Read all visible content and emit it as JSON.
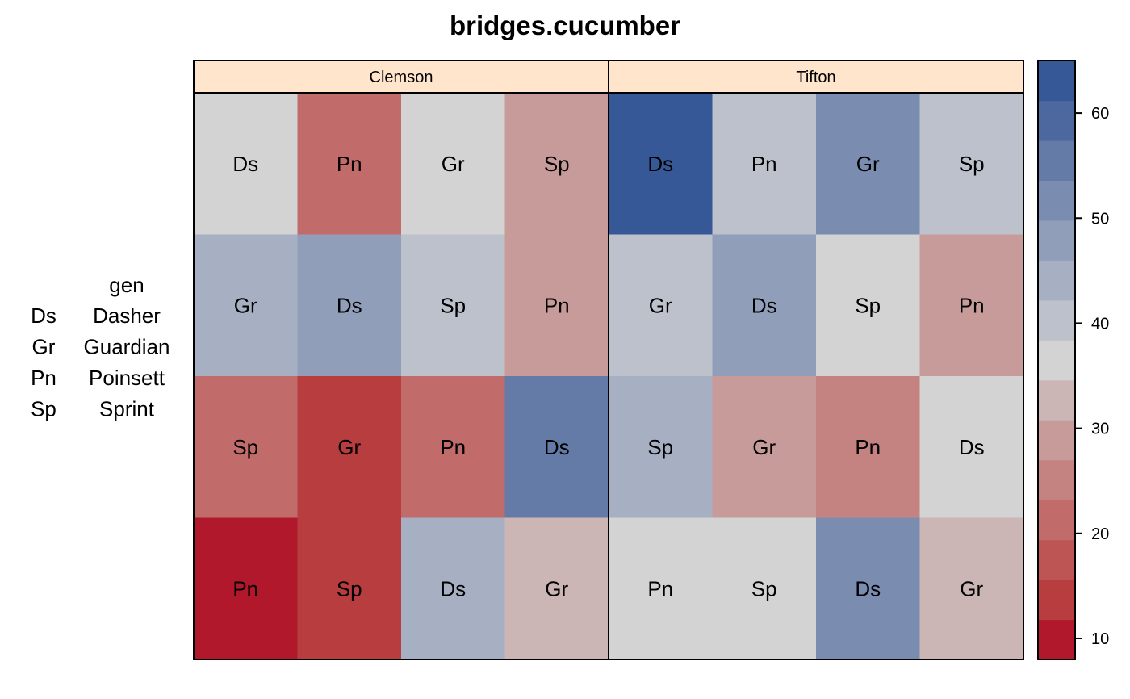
{
  "chart_data": {
    "type": "heatmap",
    "title": "bridges.cucumber",
    "panels": [
      {
        "name": "Clemson",
        "cells": [
          [
            {
              "gen": "Ds",
              "value": 38
            },
            {
              "gen": "Pn",
              "value": 21
            },
            {
              "gen": "Gr",
              "value": 38
            },
            {
              "gen": "Sp",
              "value": 30
            }
          ],
          [
            {
              "gen": "Gr",
              "value": 44
            },
            {
              "gen": "Ds",
              "value": 48
            },
            {
              "gen": "Sp",
              "value": 41
            },
            {
              "gen": "Pn",
              "value": 30
            }
          ],
          [
            {
              "gen": "Sp",
              "value": 21
            },
            {
              "gen": "Gr",
              "value": 15
            },
            {
              "gen": "Pn",
              "value": 21
            },
            {
              "gen": "Ds",
              "value": 56
            }
          ],
          [
            {
              "gen": "Pn",
              "value": 10
            },
            {
              "gen": "Sp",
              "value": 15
            },
            {
              "gen": "Ds",
              "value": 44
            },
            {
              "gen": "Gr",
              "value": 34
            }
          ]
        ]
      },
      {
        "name": "Tifton",
        "cells": [
          [
            {
              "gen": "Ds",
              "value": 64
            },
            {
              "gen": "Pn",
              "value": 41
            },
            {
              "gen": "Gr",
              "value": 52
            },
            {
              "gen": "Sp",
              "value": 41
            }
          ],
          [
            {
              "gen": "Gr",
              "value": 41
            },
            {
              "gen": "Ds",
              "value": 48
            },
            {
              "gen": "Sp",
              "value": 38
            },
            {
              "gen": "Pn",
              "value": 30
            }
          ],
          [
            {
              "gen": "Sp",
              "value": 44
            },
            {
              "gen": "Gr",
              "value": 30
            },
            {
              "gen": "Pn",
              "value": 26
            },
            {
              "gen": "Ds",
              "value": 38
            }
          ],
          [
            {
              "gen": "Pn",
              "value": 38
            },
            {
              "gen": "Sp",
              "value": 38
            },
            {
              "gen": "Ds",
              "value": 52
            },
            {
              "gen": "Gr",
              "value": 34
            }
          ]
        ]
      }
    ],
    "legend": {
      "title": "gen",
      "entries": [
        {
          "code": "Ds",
          "name": "Dasher"
        },
        {
          "code": "Gr",
          "name": "Guardian"
        },
        {
          "code": "Pn",
          "name": "Poinsett"
        },
        {
          "code": "Sp",
          "name": "Sprint"
        }
      ],
      "placement": "left"
    },
    "colorkey": {
      "range": [
        8,
        65
      ],
      "breaks": [
        8,
        11.8,
        15.6,
        19.4,
        23.2,
        27,
        30.8,
        34.6,
        38.4,
        42.2,
        46,
        49.8,
        53.6,
        57.4,
        61.2,
        65
      ],
      "colors": [
        "#B2182B",
        "#B73D3F",
        "#BD5555",
        "#C16B6B",
        "#C48281",
        "#C89B9B",
        "#CBB5B5",
        "#D3D3D3",
        "#BDC1CB",
        "#A7B0C2",
        "#919EBA",
        "#7A8DB1",
        "#647BA8",
        "#4D689F",
        "#365897"
      ],
      "ticks": [
        10,
        20,
        30,
        40,
        50,
        60
      ],
      "placement": "right"
    },
    "strip_color": "#FFE5CC"
  }
}
